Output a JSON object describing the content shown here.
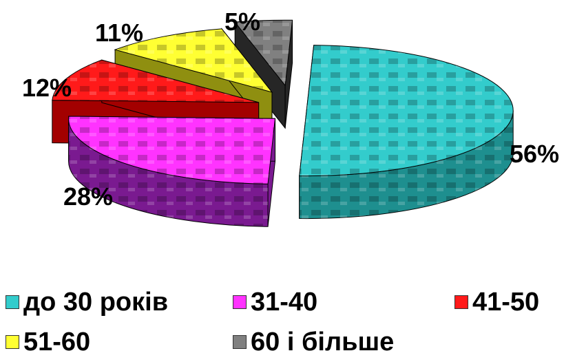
{
  "chart_data": {
    "type": "pie",
    "title": "",
    "three_d": true,
    "exploded": true,
    "legend_position": "bottom",
    "slices": [
      {
        "label": "до 30 років",
        "value": 56,
        "value_label": "56%",
        "color": "#33cccc",
        "side_color": "#1e8f8f"
      },
      {
        "label": "31-40",
        "value": 28,
        "value_label": "28%",
        "color": "#ff33ff",
        "side_color": "#7a1a90"
      },
      {
        "label": "41-50",
        "value": 12,
        "value_label": "12%",
        "color": "#ff1a1a",
        "side_color": "#a30000"
      },
      {
        "label": "51-60",
        "value": 11,
        "value_label": "11%",
        "color": "#ffff33",
        "side_color": "#8f8f10"
      },
      {
        "label": "60 і більше",
        "value": 5,
        "value_label": "5%",
        "color": "#808080",
        "side_color": "#262626"
      }
    ]
  }
}
